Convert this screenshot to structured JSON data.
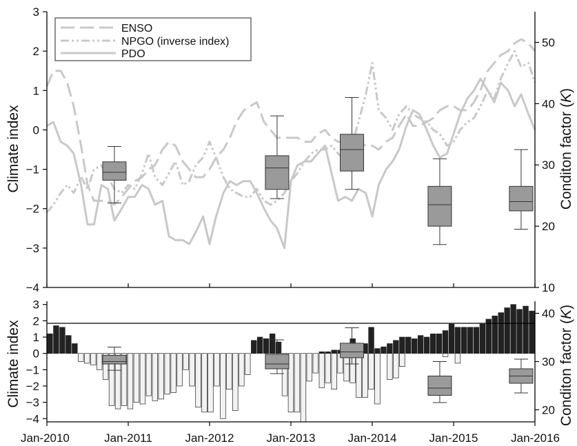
{
  "chart_data": [
    {
      "type": "line",
      "panel": "top",
      "ylabel": "Climate index",
      "ylabel_right": "Conditon factor (K)",
      "ylim": [
        -4,
        3
      ],
      "ylim_right": [
        10,
        55
      ],
      "yticks": [
        "3",
        "2",
        "1",
        "0",
        "−1",
        "−2",
        "−3",
        "−4"
      ],
      "yticks_right": [
        "50",
        "40",
        "30",
        "20",
        "10"
      ],
      "legend_position": "top-left",
      "series": [
        {
          "name": "ENSO",
          "style": "dashed",
          "x": [
            2010.0,
            2010.08,
            2010.17,
            2010.25,
            2010.33,
            2010.42,
            2010.5,
            2010.58,
            2010.67,
            2010.75,
            2010.83,
            2010.92,
            2011.0,
            2011.08,
            2011.17,
            2011.25,
            2011.33,
            2011.42,
            2011.5,
            2011.58,
            2011.67,
            2011.75,
            2011.83,
            2011.92,
            2012.0,
            2012.08,
            2012.17,
            2012.25,
            2012.33,
            2012.42,
            2012.5,
            2012.58,
            2012.67,
            2012.75,
            2012.83,
            2012.92,
            2013.0,
            2013.08,
            2013.17,
            2013.25,
            2013.33,
            2013.42,
            2013.5,
            2013.58,
            2013.67,
            2013.75,
            2013.83,
            2013.92,
            2014.0,
            2014.08,
            2014.17,
            2014.25,
            2014.33,
            2014.42,
            2014.5,
            2014.58,
            2014.67,
            2014.75,
            2014.83,
            2014.92,
            2015.0,
            2015.08,
            2015.17,
            2015.25,
            2015.33,
            2015.42,
            2015.5,
            2015.58,
            2015.67,
            2015.75,
            2015.83,
            2015.92,
            2016.0
          ],
          "values": [
            1.1,
            1.5,
            1.5,
            1.2,
            0.6,
            -0.4,
            -1.4,
            -1.8,
            -1.8,
            -1.8,
            -1.9,
            -1.7,
            -1.5,
            -1.3,
            -1.2,
            -1.0,
            -0.9,
            -0.5,
            -0.3,
            -0.4,
            -0.8,
            -1.0,
            -1.2,
            -1.2,
            -1.0,
            -0.7,
            -0.5,
            -0.2,
            0.2,
            0.5,
            0.6,
            0.7,
            0.2,
            0.0,
            -0.2,
            -0.2,
            -0.2,
            -0.2,
            -0.3,
            -0.3,
            -0.1,
            0.0,
            -0.2,
            -0.3,
            -0.3,
            -0.3,
            -0.3,
            -0.4,
            -0.4,
            -0.5,
            -0.3,
            -0.2,
            0.1,
            0.4,
            0.1,
            0.1,
            0.2,
            0.3,
            0.5,
            0.6,
            0.6,
            0.5,
            0.5,
            0.7,
            1.0,
            1.5,
            1.7,
            1.9,
            2.0,
            2.2,
            2.3,
            2.2,
            2.0
          ]
        },
        {
          "name": "NPGO (inverse index)",
          "style": "dash-dot",
          "x": [
            2010.0,
            2010.08,
            2010.17,
            2010.25,
            2010.33,
            2010.42,
            2010.5,
            2010.58,
            2010.67,
            2010.75,
            2010.83,
            2010.92,
            2011.0,
            2011.08,
            2011.17,
            2011.25,
            2011.33,
            2011.42,
            2011.5,
            2011.58,
            2011.67,
            2011.75,
            2011.83,
            2011.92,
            2012.0,
            2012.08,
            2012.17,
            2012.25,
            2012.33,
            2012.42,
            2012.5,
            2012.58,
            2012.67,
            2012.75,
            2012.83,
            2012.92,
            2013.0,
            2013.08,
            2013.17,
            2013.25,
            2013.33,
            2013.42,
            2013.5,
            2013.58,
            2013.67,
            2013.75,
            2013.83,
            2013.92,
            2014.0,
            2014.08,
            2014.17,
            2014.25,
            2014.33,
            2014.42,
            2014.5,
            2014.58,
            2014.67,
            2014.75,
            2014.83,
            2014.92,
            2015.0,
            2015.08,
            2015.17,
            2015.25,
            2015.33,
            2015.42,
            2015.5,
            2015.58,
            2015.67,
            2015.75,
            2015.83,
            2015.92,
            2016.0
          ],
          "values": [
            -2.1,
            -1.9,
            -1.6,
            -1.4,
            -1.6,
            -1.2,
            -1.5,
            -1.0,
            -0.9,
            -1.2,
            -1.5,
            -1.6,
            -1.4,
            -1.5,
            -1.1,
            -0.6,
            -1.2,
            -1.4,
            -1.1,
            -0.8,
            -1.4,
            -1.3,
            -0.9,
            -0.7,
            -0.3,
            -0.7,
            -1.2,
            -1.5,
            -1.6,
            -1.7,
            -1.7,
            -1.5,
            -1.8,
            -1.9,
            -1.8,
            -1.6,
            -1.3,
            -1.1,
            -0.8,
            -0.6,
            -0.5,
            -0.5,
            -0.4,
            -0.6,
            -0.8,
            -0.4,
            0.2,
            0.9,
            1.7,
            0.5,
            0.3,
            0.0,
            0.4,
            0.6,
            0.4,
            0.3,
            0.2,
            0.0,
            -0.1,
            -0.4,
            -0.3,
            0.0,
            0.2,
            0.3,
            0.6,
            1.0,
            0.8,
            1.3,
            1.7,
            2.0,
            1.6,
            1.7,
            1.2
          ]
        },
        {
          "name": "PDO",
          "style": "solid",
          "x": [
            2010.0,
            2010.08,
            2010.17,
            2010.25,
            2010.33,
            2010.42,
            2010.5,
            2010.58,
            2010.67,
            2010.75,
            2010.83,
            2010.92,
            2011.0,
            2011.08,
            2011.17,
            2011.25,
            2011.33,
            2011.42,
            2011.5,
            2011.58,
            2011.67,
            2011.75,
            2011.83,
            2011.92,
            2012.0,
            2012.08,
            2012.17,
            2012.25,
            2012.33,
            2012.42,
            2012.5,
            2012.58,
            2012.67,
            2012.75,
            2012.83,
            2012.92,
            2013.0,
            2013.08,
            2013.17,
            2013.25,
            2013.33,
            2013.42,
            2013.5,
            2013.58,
            2013.67,
            2013.75,
            2013.83,
            2013.92,
            2014.0,
            2014.08,
            2014.17,
            2014.25,
            2014.33,
            2014.42,
            2014.5,
            2014.58,
            2014.67,
            2014.75,
            2014.83,
            2014.92,
            2015.0,
            2015.08,
            2015.17,
            2015.25,
            2015.33,
            2015.42,
            2015.5,
            2015.58,
            2015.67,
            2015.75,
            2015.83,
            2015.92,
            2016.0
          ],
          "values": [
            0.1,
            0.2,
            -0.3,
            -0.4,
            -0.6,
            -1.4,
            -2.4,
            -2.4,
            -1.4,
            -1.5,
            -2.3,
            -2.0,
            -1.7,
            -1.7,
            -1.4,
            -1.5,
            -1.9,
            -1.8,
            -2.7,
            -2.8,
            -2.8,
            -2.9,
            -2.6,
            -2.2,
            -2.9,
            -2.2,
            -1.6,
            -1.3,
            -1.4,
            -1.3,
            -1.3,
            -1.6,
            -2.0,
            -2.3,
            -2.5,
            -3.0,
            -1.3,
            -0.9,
            -0.8,
            -0.8,
            -0.6,
            -0.4,
            -1.1,
            -1.8,
            -1.7,
            -1.8,
            -1.5,
            -1.6,
            -2.2,
            -1.4,
            -1.0,
            -0.8,
            -0.5,
            0.1,
            0.5,
            0.4,
            0.0,
            -0.4,
            -0.7,
            -0.6,
            -0.1,
            0.4,
            0.8,
            1.0,
            1.3,
            1.0,
            0.7,
            1.2,
            1.0,
            0.6,
            0.9,
            0.4,
            0.0
          ]
        }
      ],
      "boxplots": [
        {
          "x": 2010.83,
          "min": 23.8,
          "q1": 27.5,
          "median": 28.8,
          "q3": 30.5,
          "max": 33.0
        },
        {
          "x": 2012.83,
          "min": 24.5,
          "q1": 26.0,
          "median": 29.5,
          "q3": 31.5,
          "max": 38.0
        },
        {
          "x": 2013.75,
          "min": 26.0,
          "q1": 29.0,
          "median": 32.5,
          "q3": 35.0,
          "max": 41.0
        },
        {
          "x": 2014.83,
          "min": 17.0,
          "q1": 20.0,
          "median": 23.5,
          "q3": 26.5,
          "max": 31.0
        },
        {
          "x": 2015.83,
          "min": 19.5,
          "q1": 22.5,
          "median": 24.0,
          "q3": 26.5,
          "max": 32.5
        }
      ]
    },
    {
      "type": "bar",
      "panel": "bottom",
      "ylabel": "Climate index",
      "ylabel_right": "Conditon factor (K)",
      "ylim": [
        -4.2,
        3.2
      ],
      "ylim_right": [
        17.5,
        42.5
      ],
      "yticks": [
        "3",
        "2",
        "1",
        "0",
        "−1",
        "−2",
        "−3",
        "−4"
      ],
      "yticks_right": [
        "40",
        "30",
        "20"
      ],
      "xticks": [
        "Jan-2010",
        "Jan-2011",
        "Jan-2012",
        "Jan-2013",
        "Jan-2014",
        "Jan-2015",
        "Jan-2016"
      ],
      "x_start": "Jan-2010",
      "series": [
        {
          "name": "Positive (sum of indices)",
          "color": "#222222",
          "values": [
            1.2,
            1.7,
            1.6,
            1.1,
            0.6,
            0,
            0,
            0,
            0,
            0,
            0,
            0,
            0,
            0,
            0,
            0,
            0,
            0,
            0,
            0,
            0,
            0,
            0,
            0,
            0,
            0,
            0,
            0,
            0,
            0,
            0,
            0,
            0,
            0.8,
            1.0,
            0.9,
            1.2,
            0.7,
            0,
            0,
            0,
            0,
            0,
            0,
            0.1,
            0.1,
            0.2,
            0.2,
            0,
            0.9,
            0.2,
            0.6,
            1.6,
            0.3,
            0.4,
            0.6,
            0.8,
            1.0,
            1.0,
            0.9,
            1.1,
            1.0,
            1.2,
            1.2,
            1.4,
            1.8,
            1.6,
            1.6,
            1.6,
            1.6,
            1.8,
            2.1,
            2.3,
            2.5,
            2.8,
            3.0,
            2.7,
            2.9,
            2.6
          ]
        },
        {
          "name": "Negative (sum of indices)",
          "color": "#f2f2f2",
          "values": [
            0,
            0,
            0,
            0,
            0,
            -0.5,
            -0.6,
            -0.7,
            -1.0,
            -1.6,
            -3.2,
            -3.4,
            -3.2,
            -3.4,
            -3.0,
            -3.1,
            -2.6,
            -2.9,
            -2.8,
            -2.5,
            -2.4,
            -2.0,
            -1.0,
            -2.0,
            -3.3,
            -3.6,
            -3.6,
            -2.0,
            -4.0,
            -2.2,
            -3.5,
            -2.0,
            -1.3,
            0,
            0,
            0,
            0,
            0,
            -2.6,
            -3.6,
            -3.6,
            -4.2,
            -1.7,
            -1.2,
            -2.1,
            -1.8,
            -2.2,
            -1.2,
            -1.7,
            -1.8,
            -2.7,
            -2.7,
            -2.2,
            -3.1,
            0,
            -1.6,
            -1.5,
            -0.8,
            0,
            0,
            0,
            0,
            0,
            0,
            -0.2,
            0,
            -0.6,
            0,
            0,
            0,
            0,
            0,
            0,
            0,
            0,
            0,
            0,
            0,
            0
          ]
        }
      ],
      "boxplots": [
        {
          "x": 2010.83,
          "min": 28.2,
          "q1": 29.5,
          "median": 30.0,
          "q3": 31.3,
          "max": 33.0
        },
        {
          "x": 2012.83,
          "min": 27.5,
          "q1": 28.5,
          "median": 29.5,
          "q3": 31.5,
          "max": 34.5
        },
        {
          "x": 2013.75,
          "min": 29.5,
          "q1": 30.8,
          "median": 32.0,
          "q3": 33.8,
          "max": 37.0
        },
        {
          "x": 2014.83,
          "min": 21.5,
          "q1": 23.0,
          "median": 24.5,
          "q3": 27.0,
          "max": 30.0
        },
        {
          "x": 2015.83,
          "min": 23.5,
          "q1": 25.5,
          "median": 27.0,
          "q3": 28.5,
          "max": 30.5
        }
      ]
    }
  ],
  "top": {
    "ylabel_left": "Climate index",
    "ylabel_right_pre": "Conditon factor (",
    "ylabel_right_k": "K",
    "ylabel_right_post": ")",
    "legend": {
      "items": [
        "ENSO",
        "NPGO (inverse index)",
        "PDO"
      ]
    }
  },
  "bottom": {
    "ylabel_left": "Climate index",
    "ylabel_right_pre": "Conditon factor (",
    "ylabel_right_k": "K",
    "ylabel_right_post": ")"
  },
  "colors": {
    "line": "#c8c8c8",
    "box_fill": "#9a9a9a",
    "bar_pos": "#222222",
    "bar_neg": "#f2f2f2"
  }
}
